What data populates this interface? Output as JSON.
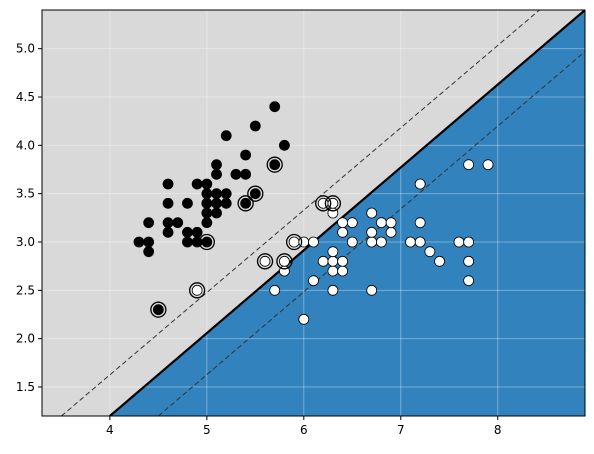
{
  "chart_data": {
    "type": "scatter",
    "title": "",
    "xlabel": "",
    "ylabel": "",
    "xlim": [
      3.3,
      8.9
    ],
    "ylim": [
      1.2,
      5.4
    ],
    "grid": true,
    "legend": "none",
    "x_ticks": [
      4,
      5,
      6,
      7,
      8
    ],
    "x_tick_labels": [
      "4",
      "5",
      "6",
      "7",
      "8"
    ],
    "y_ticks": [
      1.5,
      2.0,
      2.5,
      3.0,
      3.5,
      4.0,
      4.5,
      5.0
    ],
    "y_tick_labels": [
      "1.5",
      "2.0",
      "2.5",
      "3.0",
      "3.5",
      "4.0",
      "4.5",
      "5.0"
    ],
    "decision_boundary": {
      "description": "linear separating line with dashed margins",
      "line": [
        [
          4.0,
          1.2
        ],
        [
          8.9,
          5.4
        ]
      ],
      "margin_upper": [
        [
          3.5,
          1.2
        ],
        [
          8.9,
          5.8
        ]
      ],
      "margin_lower": [
        [
          4.5,
          1.2
        ],
        [
          8.9,
          4.97
        ]
      ]
    },
    "colors": {
      "region_class_0": "#d9d9d9",
      "region_class_1": "#3182bd",
      "class_0_marker": "#000000",
      "class_1_marker": "#ffffff",
      "boundary": "#000000",
      "grid": "#ffffff"
    },
    "series": [
      {
        "class": 0,
        "points": [
          [
            4.3,
            3.0
          ],
          [
            4.4,
            3.0
          ],
          [
            4.4,
            3.2
          ],
          [
            4.4,
            2.9
          ],
          [
            4.5,
            2.3
          ],
          [
            4.6,
            3.1
          ],
          [
            4.6,
            3.2
          ],
          [
            4.6,
            3.4
          ],
          [
            4.6,
            3.6
          ],
          [
            4.7,
            3.2
          ],
          [
            4.8,
            3.0
          ],
          [
            4.8,
            3.1
          ],
          [
            4.8,
            3.4
          ],
          [
            4.9,
            3.0
          ],
          [
            4.9,
            3.1
          ],
          [
            4.9,
            3.6
          ],
          [
            5.0,
            3.0
          ],
          [
            5.0,
            3.2
          ],
          [
            5.0,
            3.3
          ],
          [
            5.0,
            3.4
          ],
          [
            5.0,
            3.5
          ],
          [
            5.0,
            3.6
          ],
          [
            5.1,
            3.3
          ],
          [
            5.1,
            3.4
          ],
          [
            5.1,
            3.5
          ],
          [
            5.1,
            3.7
          ],
          [
            5.1,
            3.8
          ],
          [
            5.2,
            3.4
          ],
          [
            5.2,
            3.5
          ],
          [
            5.2,
            4.1
          ],
          [
            5.3,
            3.7
          ],
          [
            5.4,
            3.4
          ],
          [
            5.4,
            3.7
          ],
          [
            5.4,
            3.9
          ],
          [
            5.5,
            3.5
          ],
          [
            5.5,
            4.2
          ],
          [
            5.7,
            3.8
          ],
          [
            5.7,
            4.4
          ],
          [
            5.8,
            4.0
          ]
        ]
      },
      {
        "class": 1,
        "points": [
          [
            4.9,
            2.5
          ],
          [
            5.6,
            2.8
          ],
          [
            5.7,
            2.5
          ],
          [
            5.8,
            2.7
          ],
          [
            5.8,
            2.8
          ],
          [
            5.9,
            3.0
          ],
          [
            6.0,
            2.2
          ],
          [
            6.0,
            3.0
          ],
          [
            6.1,
            2.6
          ],
          [
            6.1,
            3.0
          ],
          [
            6.2,
            2.8
          ],
          [
            6.2,
            3.4
          ],
          [
            6.3,
            2.5
          ],
          [
            6.3,
            2.7
          ],
          [
            6.3,
            2.8
          ],
          [
            6.3,
            2.9
          ],
          [
            6.3,
            3.3
          ],
          [
            6.3,
            3.4
          ],
          [
            6.4,
            2.7
          ],
          [
            6.4,
            2.8
          ],
          [
            6.4,
            3.1
          ],
          [
            6.4,
            3.2
          ],
          [
            6.5,
            3.0
          ],
          [
            6.5,
            3.2
          ],
          [
            6.7,
            2.5
          ],
          [
            6.7,
            3.0
          ],
          [
            6.7,
            3.1
          ],
          [
            6.7,
            3.3
          ],
          [
            6.8,
            3.0
          ],
          [
            6.8,
            3.2
          ],
          [
            6.9,
            3.1
          ],
          [
            6.9,
            3.2
          ],
          [
            7.1,
            3.0
          ],
          [
            7.2,
            3.0
          ],
          [
            7.2,
            3.2
          ],
          [
            7.2,
            3.6
          ],
          [
            7.3,
            2.9
          ],
          [
            7.4,
            2.8
          ],
          [
            7.6,
            3.0
          ],
          [
            7.7,
            2.6
          ],
          [
            7.7,
            2.8
          ],
          [
            7.7,
            3.0
          ],
          [
            7.7,
            3.8
          ],
          [
            7.9,
            3.8
          ]
        ]
      }
    ],
    "support_vectors": [
      [
        4.5,
        2.3
      ],
      [
        5.0,
        3.0
      ],
      [
        5.4,
        3.4
      ],
      [
        5.5,
        3.5
      ],
      [
        5.7,
        3.8
      ],
      [
        4.9,
        2.5
      ],
      [
        5.6,
        2.8
      ],
      [
        5.8,
        2.8
      ],
      [
        5.9,
        3.0
      ],
      [
        6.2,
        3.4
      ],
      [
        6.3,
        3.4
      ]
    ]
  }
}
